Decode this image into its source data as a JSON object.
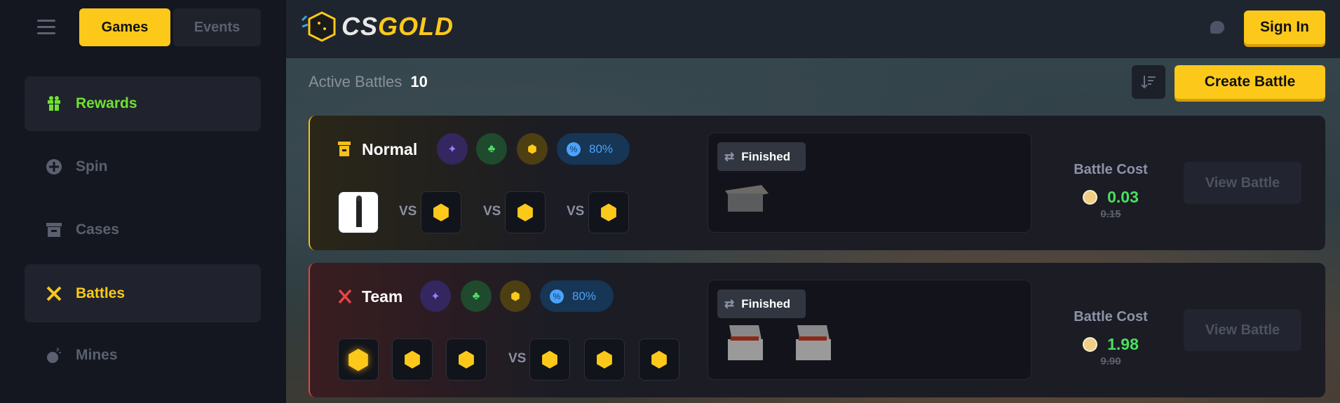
{
  "sidebar": {
    "tabs": [
      {
        "label": "Games",
        "active": true
      },
      {
        "label": "Events",
        "active": false
      }
    ],
    "items": [
      {
        "label": "Rewards",
        "icon": "gift-icon",
        "color": "#6fe12f"
      },
      {
        "label": "Spin",
        "icon": "spin-icon"
      },
      {
        "label": "Cases",
        "icon": "case-icon"
      },
      {
        "label": "Battles",
        "icon": "swords-icon",
        "color": "#fcc91a",
        "active": true
      },
      {
        "label": "Mines",
        "icon": "bomb-icon"
      }
    ]
  },
  "header": {
    "logo": "CSGOLD",
    "sign_in": "Sign In"
  },
  "main": {
    "title": "Active Battles",
    "count": "10",
    "create_label": "Create Battle",
    "battles": [
      {
        "mode": "Normal",
        "mode_color": "#f5c11a",
        "discount": "80%",
        "status": "Finished",
        "cost_label": "Battle Cost",
        "cost": "0.03",
        "original": "0.15",
        "view": "View Battle",
        "vs": "VS"
      },
      {
        "mode": "Team",
        "mode_color": "#e84545",
        "discount": "80%",
        "status": "Finished",
        "cost_label": "Battle Cost",
        "cost": "1.98",
        "original": "9.90",
        "view": "View Battle",
        "vs": "VS"
      }
    ]
  },
  "colors": {
    "accent": "#fcc91a",
    "green": "#47e25b",
    "blue": "#49a3ff"
  }
}
